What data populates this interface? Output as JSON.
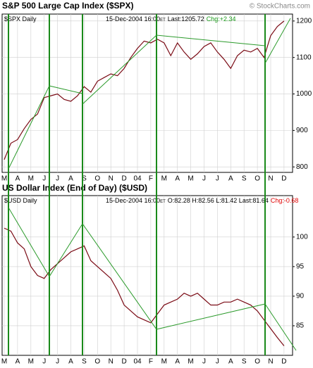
{
  "chart_data": [
    {
      "type": "line",
      "title": "S&P 500 Large Cap Index ($SPX)",
      "watermark": "© StockCharts.com",
      "label": "$SPX Daily",
      "date": "15-Dec-2004 16:00",
      "tz": "ET",
      "quote": "Last:1205.72",
      "change": "Chg:+2.34",
      "categories": [
        "M",
        null,
        "A",
        null,
        "M",
        null,
        "J",
        null,
        "J",
        null,
        "A",
        null,
        "S",
        null,
        "O",
        null,
        "N",
        null,
        "D",
        null,
        "04",
        null,
        "F",
        null,
        "M",
        null,
        "A",
        null,
        "M",
        null,
        "J",
        null,
        "J",
        null,
        "A",
        null,
        "S",
        null,
        "O",
        null,
        "N",
        null,
        "D"
      ],
      "values": [
        820,
        865,
        875,
        905,
        930,
        945,
        990,
        995,
        1000,
        985,
        980,
        995,
        1020,
        1005,
        1035,
        1045,
        1055,
        1050,
        1070,
        1100,
        1125,
        1145,
        1140,
        1150,
        1140,
        1105,
        1140,
        1115,
        1095,
        1110,
        1130,
        1140,
        1115,
        1095,
        1070,
        1105,
        1120,
        1115,
        1125,
        1100,
        1160,
        1185,
        1200
      ],
      "color": "#7a0a14",
      "ylim": [
        785,
        1219
      ],
      "yticks": [
        800,
        900,
        1000,
        1100,
        1200
      ],
      "grid": true
    },
    {
      "type": "line",
      "title": "US Dollar Index (End of Day) ($USD)",
      "label": "$USD Daily",
      "date": "15-Dec-2004 16:00",
      "tz": "ET",
      "quote": "O:82.28 H:82.56 L:81.42 Last:81.64",
      "change": "Chg:-0.68",
      "categories": [
        "M",
        null,
        "A",
        null,
        "M",
        null,
        "J",
        null,
        "J",
        null,
        "A",
        null,
        "S",
        null,
        "O",
        null,
        "N",
        null,
        "D",
        null,
        "04",
        null,
        "F",
        null,
        "M",
        null,
        "A",
        null,
        "M",
        null,
        "J",
        null,
        "J",
        null,
        "A",
        null,
        "S",
        null,
        "O",
        null,
        "N",
        null,
        "D"
      ],
      "values": [
        101.5,
        101,
        99,
        98,
        95,
        93.5,
        93,
        94.5,
        95.5,
        96.5,
        97.5,
        98,
        98.5,
        96,
        95,
        94,
        93,
        91,
        88.5,
        87.5,
        86.5,
        86,
        85.5,
        87,
        88.5,
        89,
        89.5,
        90.5,
        90,
        90.5,
        89.5,
        88.5,
        88.5,
        89,
        89,
        89.5,
        89,
        88.5,
        87.5,
        86,
        84.5,
        83,
        81.6
      ],
      "color": "#7a0a14",
      "ylim": [
        80,
        107
      ],
      "yticks": [
        85,
        90,
        95,
        100
      ],
      "grid": true
    }
  ]
}
